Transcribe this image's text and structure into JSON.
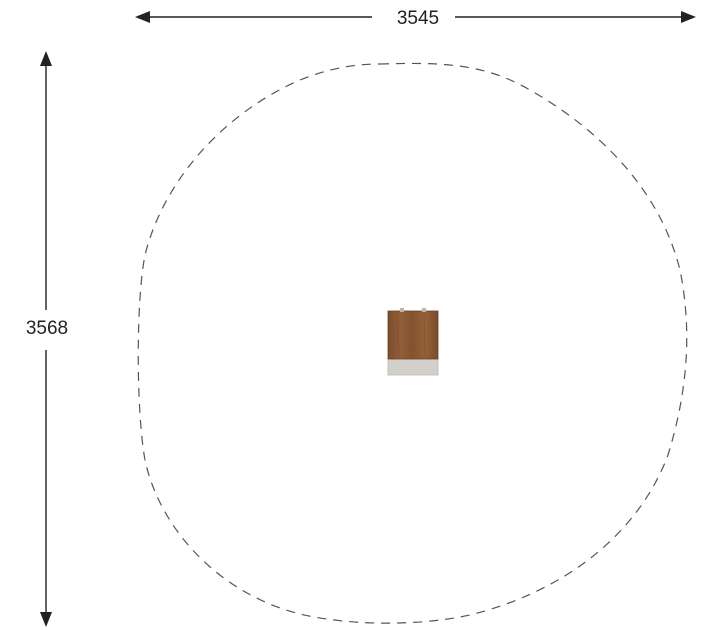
{
  "dimensions": {
    "width_label": "3545",
    "height_label": "3568"
  },
  "colors": {
    "line": "#222222",
    "clearance_outline": "#555555",
    "wood_top": "#8a5a35",
    "wood_grain": "#7a4c2b",
    "base_plate": "#d2cfcb"
  },
  "items": {
    "clearance_zone": "dashed-ellipse",
    "equipment": "wooden-post-with-base"
  }
}
